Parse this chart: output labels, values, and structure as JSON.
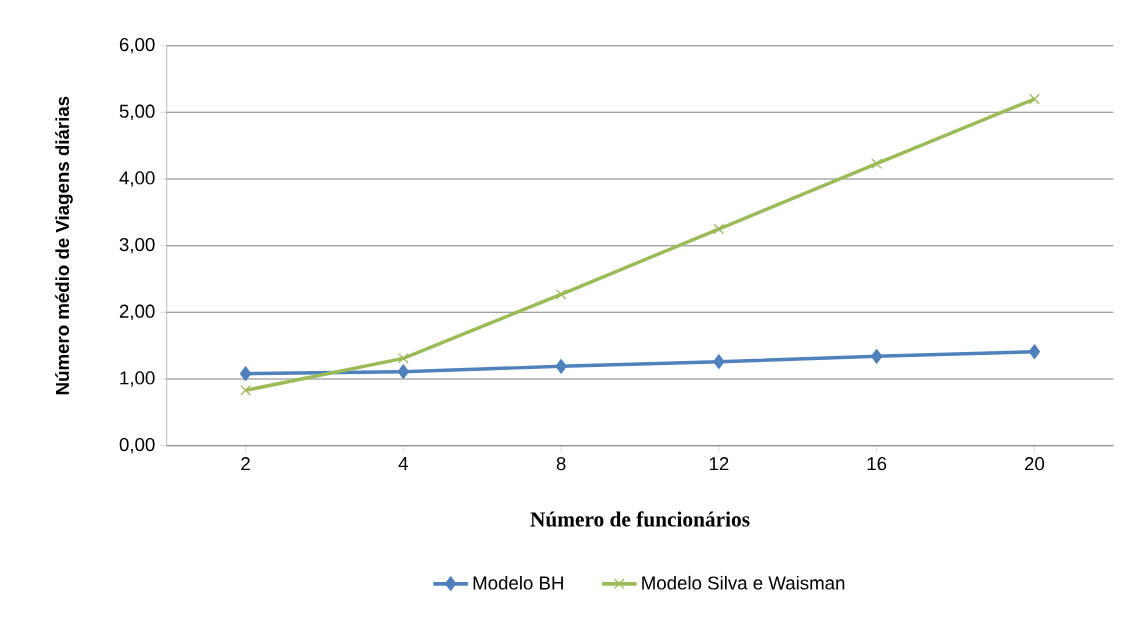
{
  "chart_data": {
    "type": "line",
    "xlabel": "Número de funcionários",
    "ylabel": "Número médio de Viagens diárias",
    "categories": [
      "2",
      "4",
      "8",
      "12",
      "16",
      "20"
    ],
    "series": [
      {
        "name": "Modelo BH",
        "color": "#4f81bd",
        "marker": "diamond",
        "values": [
          1.08,
          1.11,
          1.19,
          1.26,
          1.34,
          1.41
        ]
      },
      {
        "name": "Modelo Silva e Waisman",
        "color": "#9bbb59",
        "marker": "cross",
        "values": [
          0.83,
          1.31,
          2.27,
          3.25,
          4.23,
          5.2
        ]
      }
    ],
    "ylim": [
      0,
      6
    ],
    "yticks": [
      {
        "value": 0,
        "label": "0,00"
      },
      {
        "value": 1,
        "label": "1,00"
      },
      {
        "value": 2,
        "label": "2,00"
      },
      {
        "value": 3,
        "label": "3,00"
      },
      {
        "value": 4,
        "label": "4,00"
      },
      {
        "value": 5,
        "label": "5,00"
      },
      {
        "value": 6,
        "label": "6,00"
      }
    ],
    "grid": "y",
    "legend": "bottom"
  }
}
